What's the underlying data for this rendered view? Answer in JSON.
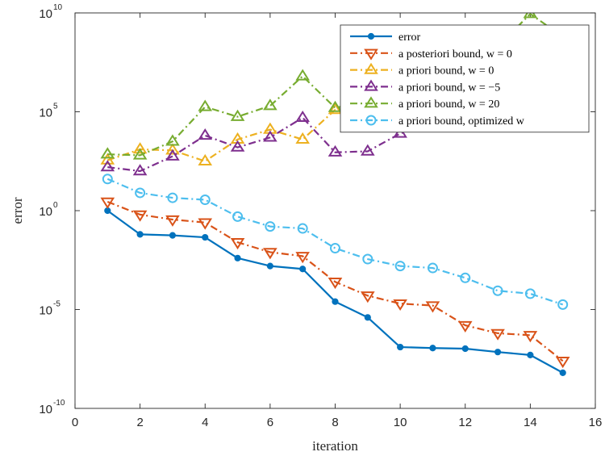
{
  "chart_data": {
    "type": "line",
    "xlabel": "iteration",
    "ylabel": "error",
    "xlim": [
      0,
      16
    ],
    "ylim_exponent": [
      -10,
      10
    ],
    "yscale": "log",
    "xticks": [
      "0",
      "2",
      "4",
      "6",
      "8",
      "10",
      "12",
      "14",
      "16"
    ],
    "yticks": [
      {
        "base": "10",
        "exp": "-10"
      },
      {
        "base": "10",
        "exp": "-5"
      },
      {
        "base": "10",
        "exp": "0"
      },
      {
        "base": "10",
        "exp": "5"
      },
      {
        "base": "10",
        "exp": "10"
      }
    ],
    "legend_position": "top-right",
    "x": [
      1,
      2,
      3,
      4,
      5,
      6,
      7,
      8,
      9,
      10,
      11,
      12,
      13,
      14,
      15
    ],
    "series": [
      {
        "name": "error",
        "color": "#0072BD",
        "dash": "solid",
        "marker": "dot",
        "log10_values": [
          0.0,
          -1.2,
          -1.25,
          -1.35,
          -2.4,
          -2.8,
          -2.95,
          -4.6,
          -5.4,
          -6.9,
          -6.95,
          -6.98,
          -7.15,
          -7.3,
          -8.2
        ]
      },
      {
        "name": "a posteriori bound, w = 0",
        "color": "#D95319",
        "dash": "dashdot",
        "marker": "triangle-down",
        "log10_values": [
          0.45,
          -0.2,
          -0.45,
          -0.6,
          -1.6,
          -2.1,
          -2.3,
          -3.6,
          -4.3,
          -4.7,
          -4.8,
          -5.8,
          -6.2,
          -6.3,
          -7.6
        ]
      },
      {
        "name": "a priori bound, w = 0",
        "color": "#EDB120",
        "dash": "dashdot",
        "marker": "triangle-up",
        "log10_values": [
          2.55,
          3.1,
          3.05,
          2.5,
          3.6,
          4.1,
          3.6,
          5.1,
          5.3,
          5.8,
          6.2,
          6.6,
          7.0,
          7.5,
          8.0
        ]
      },
      {
        "name": "a priori bound, w = −5",
        "color": "#7E2F8E",
        "dash": "dashdot",
        "marker": "triangle-up",
        "log10_values": [
          2.2,
          2.0,
          2.75,
          3.8,
          3.2,
          3.7,
          4.7,
          2.95,
          3.0,
          3.9,
          4.5,
          5.0,
          5.3,
          5.7,
          6.0
        ]
      },
      {
        "name": "a priori bound, w = 20",
        "color": "#77AC30",
        "dash": "dashdot",
        "marker": "triangle-up",
        "log10_values": [
          2.85,
          2.8,
          3.5,
          5.25,
          4.75,
          5.3,
          6.8,
          5.2,
          5.5,
          6.2,
          6.9,
          7.6,
          8.3,
          9.95,
          8.8
        ]
      },
      {
        "name": "a priori bound, optimized w",
        "color": "#4DBEEE",
        "dash": "dashdot",
        "marker": "circle",
        "log10_values": [
          1.6,
          0.9,
          0.65,
          0.55,
          -0.3,
          -0.8,
          -0.9,
          -1.9,
          -2.45,
          -2.8,
          -2.9,
          -3.4,
          -4.05,
          -4.2,
          -4.75
        ]
      }
    ]
  }
}
